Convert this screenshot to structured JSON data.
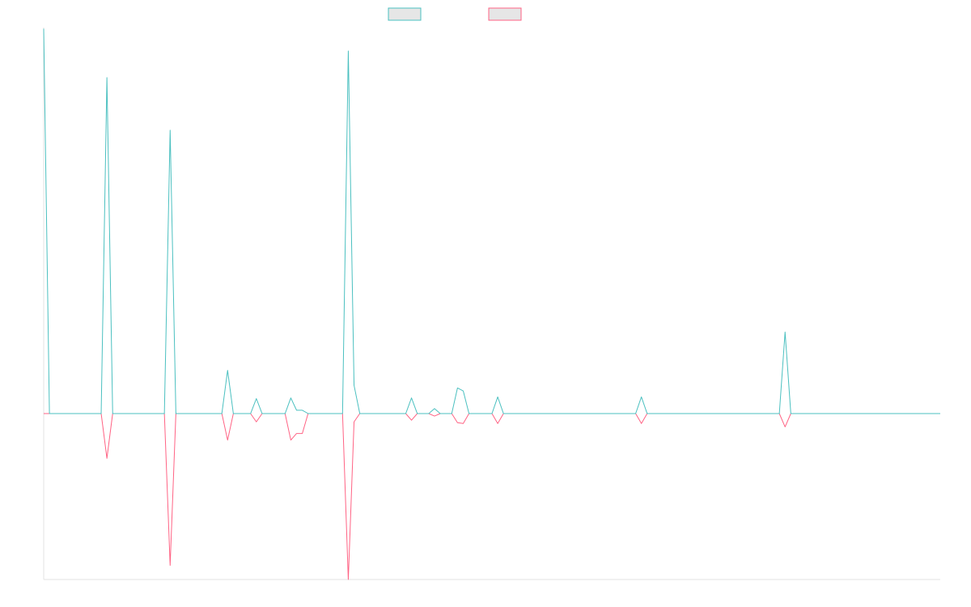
{
  "chart_data": {
    "type": "line",
    "title": "",
    "xlabel": "",
    "ylabel": "",
    "grid": false,
    "legend_position": "top-center",
    "x_count": 157,
    "ylim": [
      -1,
      1.165
    ],
    "series": [
      {
        "color": "#4bc0c0",
        "points": [
          [
            0,
            1.157
          ],
          [
            1,
            0
          ],
          [
            10,
            0
          ],
          [
            11,
            1.01
          ],
          [
            12,
            0
          ],
          [
            21,
            0
          ],
          [
            22,
            0.852
          ],
          [
            23,
            0
          ],
          [
            31,
            0
          ],
          [
            32,
            0.13
          ],
          [
            33,
            0
          ],
          [
            36,
            0
          ],
          [
            37,
            0.045
          ],
          [
            38,
            0
          ],
          [
            42,
            0
          ],
          [
            43,
            0.047
          ],
          [
            44,
            0.01
          ],
          [
            45,
            0.01
          ],
          [
            46,
            0
          ],
          [
            52,
            0
          ],
          [
            53,
            1.09
          ],
          [
            54,
            0.085
          ],
          [
            55,
            0
          ],
          [
            63,
            0
          ],
          [
            64,
            0.047
          ],
          [
            65,
            0
          ],
          [
            67,
            0
          ],
          [
            68,
            0.015
          ],
          [
            69,
            0
          ],
          [
            71,
            0
          ],
          [
            72,
            0.077
          ],
          [
            73,
            0.068
          ],
          [
            74,
            0
          ],
          [
            78,
            0
          ],
          [
            79,
            0.05
          ],
          [
            80,
            0
          ],
          [
            103,
            0
          ],
          [
            104,
            0.05
          ],
          [
            105,
            0
          ],
          [
            128,
            0
          ],
          [
            129,
            0.245
          ],
          [
            130,
            0
          ],
          [
            156,
            0
          ]
        ]
      },
      {
        "color": "#ff6384",
        "points": [
          [
            0,
            0
          ],
          [
            1,
            0
          ],
          [
            10,
            0
          ],
          [
            11,
            -0.27
          ],
          [
            12,
            0
          ],
          [
            21,
            0
          ],
          [
            22,
            -0.915
          ],
          [
            23,
            0
          ],
          [
            31,
            0
          ],
          [
            32,
            -0.16
          ],
          [
            33,
            0
          ],
          [
            36,
            0
          ],
          [
            37,
            -0.05
          ],
          [
            38,
            0
          ],
          [
            42,
            0
          ],
          [
            43,
            -0.16
          ],
          [
            44,
            -0.12
          ],
          [
            45,
            -0.12
          ],
          [
            46,
            0
          ],
          [
            52,
            0
          ],
          [
            53,
            -1.0
          ],
          [
            54,
            -0.05
          ],
          [
            55,
            0
          ],
          [
            63,
            0
          ],
          [
            64,
            -0.04
          ],
          [
            65,
            0
          ],
          [
            67,
            0
          ],
          [
            68,
            -0.015
          ],
          [
            69,
            0
          ],
          [
            71,
            0
          ],
          [
            72,
            -0.055
          ],
          [
            73,
            -0.06
          ],
          [
            74,
            0
          ],
          [
            78,
            0
          ],
          [
            79,
            -0.06
          ],
          [
            80,
            0
          ],
          [
            103,
            0
          ],
          [
            104,
            -0.06
          ],
          [
            105,
            0
          ],
          [
            128,
            0
          ],
          [
            129,
            -0.08
          ],
          [
            130,
            0
          ],
          [
            156,
            0
          ]
        ]
      }
    ]
  }
}
